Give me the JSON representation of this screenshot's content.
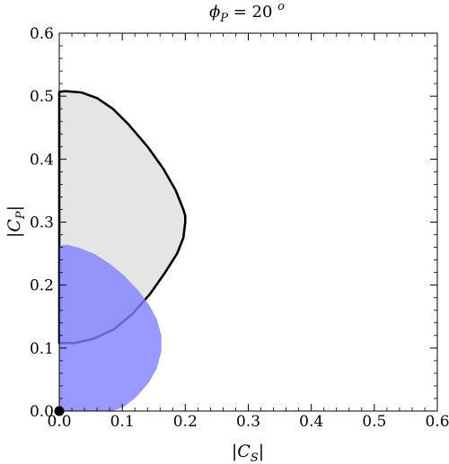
{
  "chart_data": {
    "type": "area",
    "title": {
      "prefix": "ϕ",
      "sub": "P",
      "equals": " = 20 ",
      "sup": "o"
    },
    "xlabel": {
      "name": "C",
      "sub": "S"
    },
    "ylabel": {
      "name": "C",
      "sub": "P"
    },
    "xlim": [
      0,
      0.6
    ],
    "ylim": [
      0,
      0.6
    ],
    "xticks": [
      "0.0",
      "0.1",
      "0.2",
      "0.3",
      "0.4",
      "0.5",
      "0.6"
    ],
    "yticks": [
      "0.0",
      "0.1",
      "0.2",
      "0.3",
      "0.4",
      "0.5",
      "0.6"
    ],
    "grid": false,
    "series": [
      {
        "style": "filled-outlined",
        "fill": "#e5e5e5",
        "stroke": "#000000",
        "points": [
          [
            0,
            0.108
          ],
          [
            0,
            0.507
          ],
          [
            0.01,
            0.508
          ],
          [
            0.035,
            0.506
          ],
          [
            0.06,
            0.497
          ],
          [
            0.085,
            0.48
          ],
          [
            0.11,
            0.455
          ],
          [
            0.14,
            0.42
          ],
          [
            0.165,
            0.385
          ],
          [
            0.185,
            0.35
          ],
          [
            0.197,
            0.32
          ],
          [
            0.2,
            0.31
          ],
          [
            0.2,
            0.3
          ],
          [
            0.197,
            0.275
          ],
          [
            0.187,
            0.25
          ],
          [
            0.168,
            0.22
          ],
          [
            0.145,
            0.187
          ],
          [
            0.117,
            0.155
          ],
          [
            0.087,
            0.13
          ],
          [
            0.055,
            0.115
          ],
          [
            0.025,
            0.108
          ],
          [
            0,
            0.108
          ]
        ]
      },
      {
        "style": "filled",
        "fill": "#8080ff",
        "opacity": 0.8,
        "points": [
          [
            0,
            0
          ],
          [
            0,
            0.263
          ],
          [
            0.012,
            0.264
          ],
          [
            0.03,
            0.26
          ],
          [
            0.055,
            0.25
          ],
          [
            0.08,
            0.234
          ],
          [
            0.103,
            0.215
          ],
          [
            0.125,
            0.192
          ],
          [
            0.143,
            0.168
          ],
          [
            0.155,
            0.145
          ],
          [
            0.162,
            0.12
          ],
          [
            0.162,
            0.095
          ],
          [
            0.155,
            0.068
          ],
          [
            0.142,
            0.045
          ],
          [
            0.122,
            0.022
          ],
          [
            0.102,
            0.006
          ],
          [
            0.085,
            0
          ],
          [
            0,
            0
          ]
        ]
      }
    ],
    "points": [
      {
        "x": 0,
        "y": 0,
        "color": "#000000"
      }
    ]
  }
}
